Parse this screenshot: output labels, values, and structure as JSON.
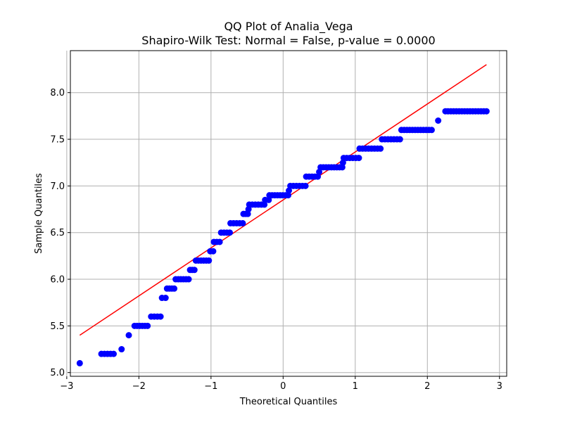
{
  "chart_data": {
    "type": "scatter",
    "title": "QQ Plot of Analia_Vega",
    "subtitle": "Shapiro-Wilk Test: Normal = False, p-value = 0.0000",
    "xlabel": "Theoretical Quantiles",
    "ylabel": "Sample Quantiles",
    "xlim": [
      -2.95,
      3.1
    ],
    "ylim": [
      4.96,
      8.45
    ],
    "x_ticks": [
      -3,
      -2,
      -1,
      0,
      1,
      2,
      3
    ],
    "x_tick_labels": [
      "−3",
      "−2",
      "−1",
      "0",
      "1",
      "2",
      "3"
    ],
    "y_ticks": [
      5.0,
      5.5,
      6.0,
      6.5,
      7.0,
      7.5,
      8.0
    ],
    "y_tick_labels": [
      "5.0",
      "5.5",
      "6.0",
      "6.5",
      "7.0",
      "7.5",
      "8.0"
    ],
    "grid": true,
    "colors": {
      "points": "#0000ff",
      "line": "#ff0000",
      "grid": "#b0b0b0"
    },
    "reference_line": {
      "x": [
        -2.82,
        2.82
      ],
      "y": [
        5.4,
        8.3
      ]
    },
    "groups": [
      {
        "y": 5.1,
        "x": [
          -2.82
        ]
      },
      {
        "y": 5.2,
        "x": [
          -2.52,
          -2.35
        ]
      },
      {
        "y": 5.25,
        "x": [
          -2.24
        ]
      },
      {
        "y": 5.4,
        "x": [
          -2.14
        ]
      },
      {
        "y": 5.5,
        "x": [
          -2.06,
          -1.88
        ]
      },
      {
        "y": 5.6,
        "x": [
          -1.83,
          -1.7
        ]
      },
      {
        "y": 5.8,
        "x": [
          -1.68,
          -1.63
        ]
      },
      {
        "y": 5.9,
        "x": [
          -1.61,
          -1.51
        ]
      },
      {
        "y": 6.0,
        "x": [
          -1.49,
          -1.31
        ]
      },
      {
        "y": 6.1,
        "x": [
          -1.29,
          -1.23
        ]
      },
      {
        "y": 6.2,
        "x": [
          -1.21,
          -1.03
        ]
      },
      {
        "y": 6.3,
        "x": [
          -1.01,
          -0.97
        ]
      },
      {
        "y": 6.4,
        "x": [
          -0.96,
          -0.88
        ]
      },
      {
        "y": 6.5,
        "x": [
          -0.86,
          -0.74
        ]
      },
      {
        "y": 6.6,
        "x": [
          -0.73,
          -0.56
        ]
      },
      {
        "y": 6.7,
        "x": [
          -0.55,
          -0.49
        ]
      },
      {
        "y": 6.75,
        "x": [
          -0.48
        ]
      },
      {
        "y": 6.8,
        "x": [
          -0.47,
          -0.26
        ]
      },
      {
        "y": 6.85,
        "x": [
          -0.25,
          -0.2
        ]
      },
      {
        "y": 6.9,
        "x": [
          -0.19,
          0.07
        ]
      },
      {
        "y": 6.95,
        "x": [
          0.08
        ]
      },
      {
        "y": 7.0,
        "x": [
          0.1,
          0.31
        ]
      },
      {
        "y": 7.1,
        "x": [
          0.32,
          0.48
        ]
      },
      {
        "y": 7.15,
        "x": [
          0.5
        ]
      },
      {
        "y": 7.2,
        "x": [
          0.52,
          0.82
        ]
      },
      {
        "y": 7.25,
        "x": [
          0.83
        ]
      },
      {
        "y": 7.3,
        "x": [
          0.84,
          1.05
        ]
      },
      {
        "y": 7.4,
        "x": [
          1.06,
          1.35
        ]
      },
      {
        "y": 7.5,
        "x": [
          1.37,
          1.62
        ]
      },
      {
        "y": 7.6,
        "x": [
          1.64,
          2.06
        ]
      },
      {
        "y": 7.7,
        "x": [
          2.15
        ]
      },
      {
        "y": 7.8,
        "x": [
          2.25,
          2.36,
          2.52,
          2.82
        ]
      }
    ]
  }
}
